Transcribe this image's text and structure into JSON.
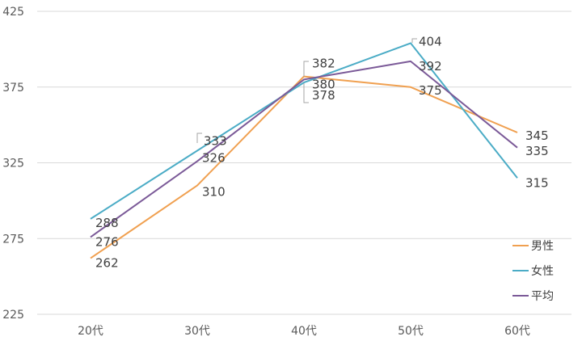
{
  "chart_data": {
    "type": "line",
    "categories": [
      "20代",
      "30代",
      "40代",
      "50代",
      "60代"
    ],
    "series": [
      {
        "name": "男性",
        "color": "#F0A050",
        "values": [
          262,
          310,
          382,
          375,
          345
        ]
      },
      {
        "name": "女性",
        "color": "#4BACC6",
        "values": [
          288,
          333,
          378,
          404,
          315
        ]
      },
      {
        "name": "平均",
        "color": "#7B5A98",
        "values": [
          276,
          326,
          380,
          392,
          335
        ]
      }
    ],
    "ylim": [
      225,
      425
    ],
    "yticks": [
      225,
      275,
      325,
      375,
      425
    ],
    "grid": true,
    "legend_position": "right",
    "gridline_color": "#d9d9d9"
  }
}
